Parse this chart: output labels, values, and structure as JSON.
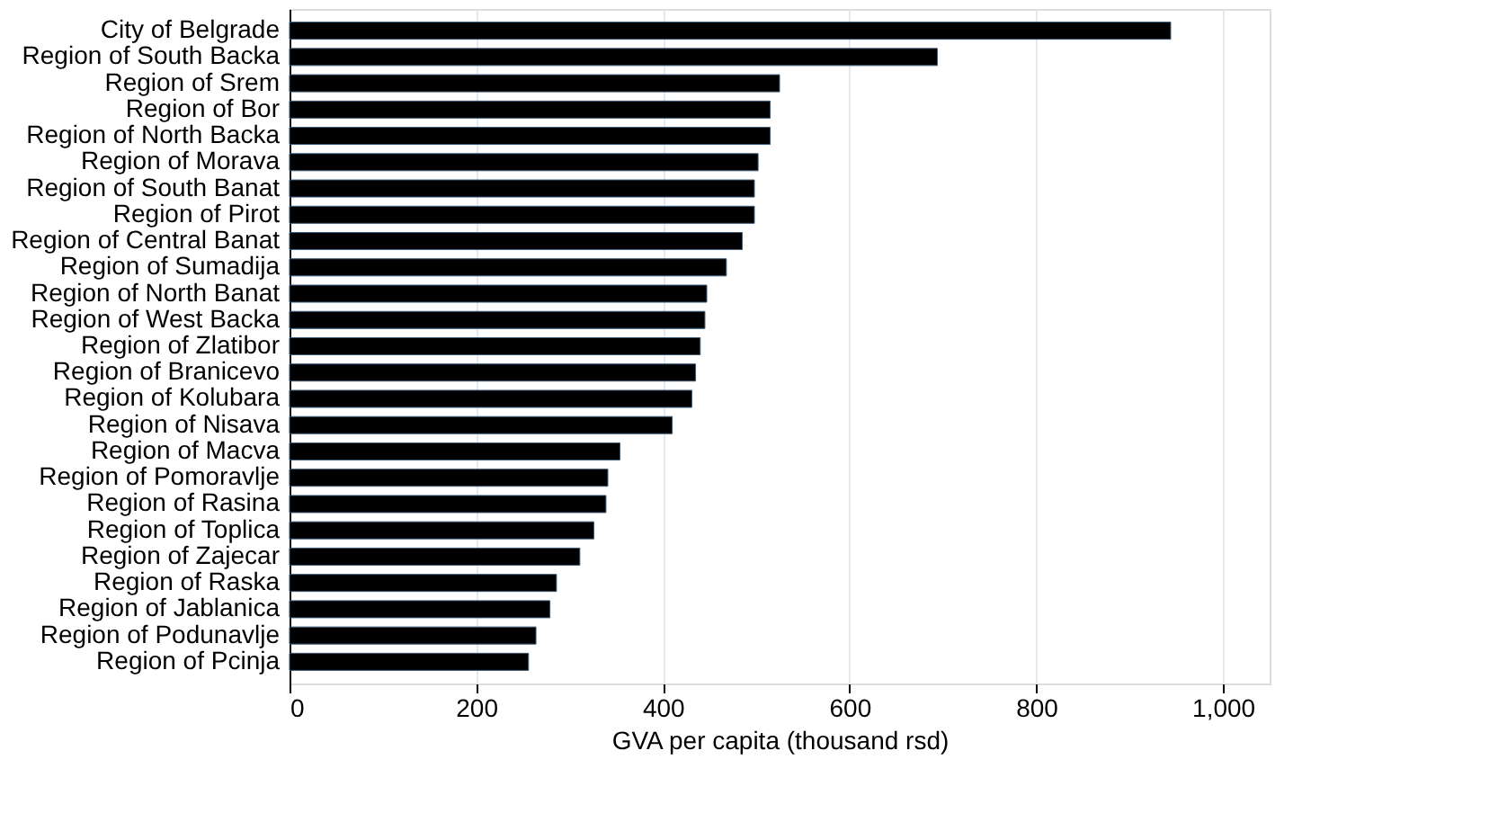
{
  "chart_data": {
    "type": "bar",
    "orientation": "horizontal",
    "xlabel": "GVA per capita (thousand rsd)",
    "categories": [
      "City of Belgrade",
      "Region of South Backa",
      "Region of Srem",
      "Region of Bor",
      "Region of North Backa",
      "Region of Morava",
      "Region of South Banat",
      "Region of Pirot",
      "Region of Central Banat",
      "Region of Sumadija",
      "Region of North Banat",
      "Region of West Backa",
      "Region of Zlatibor",
      "Region of Branicevo",
      "Region of Kolubara",
      "Region of Nisava",
      "Region of Macva",
      "Region of Pomoravlje",
      "Region of Rasina ",
      "Region of Toplica",
      "Region of Zajecar",
      "Region of Raska",
      "Region of Jablanica",
      "Region of Podunavlje",
      "Region of Pcinja"
    ],
    "values": [
      944,
      694,
      525,
      515,
      515,
      502,
      498,
      498,
      485,
      468,
      447,
      445,
      440,
      435,
      431,
      410,
      354,
      341,
      339,
      326,
      311,
      286,
      279,
      264,
      256
    ],
    "color": "#000000",
    "xlim": [
      0,
      1050
    ],
    "xticks": [
      0,
      200,
      400,
      600,
      800,
      {
        "value": 1000,
        "label": "1,000"
      }
    ],
    "grid": "x"
  }
}
